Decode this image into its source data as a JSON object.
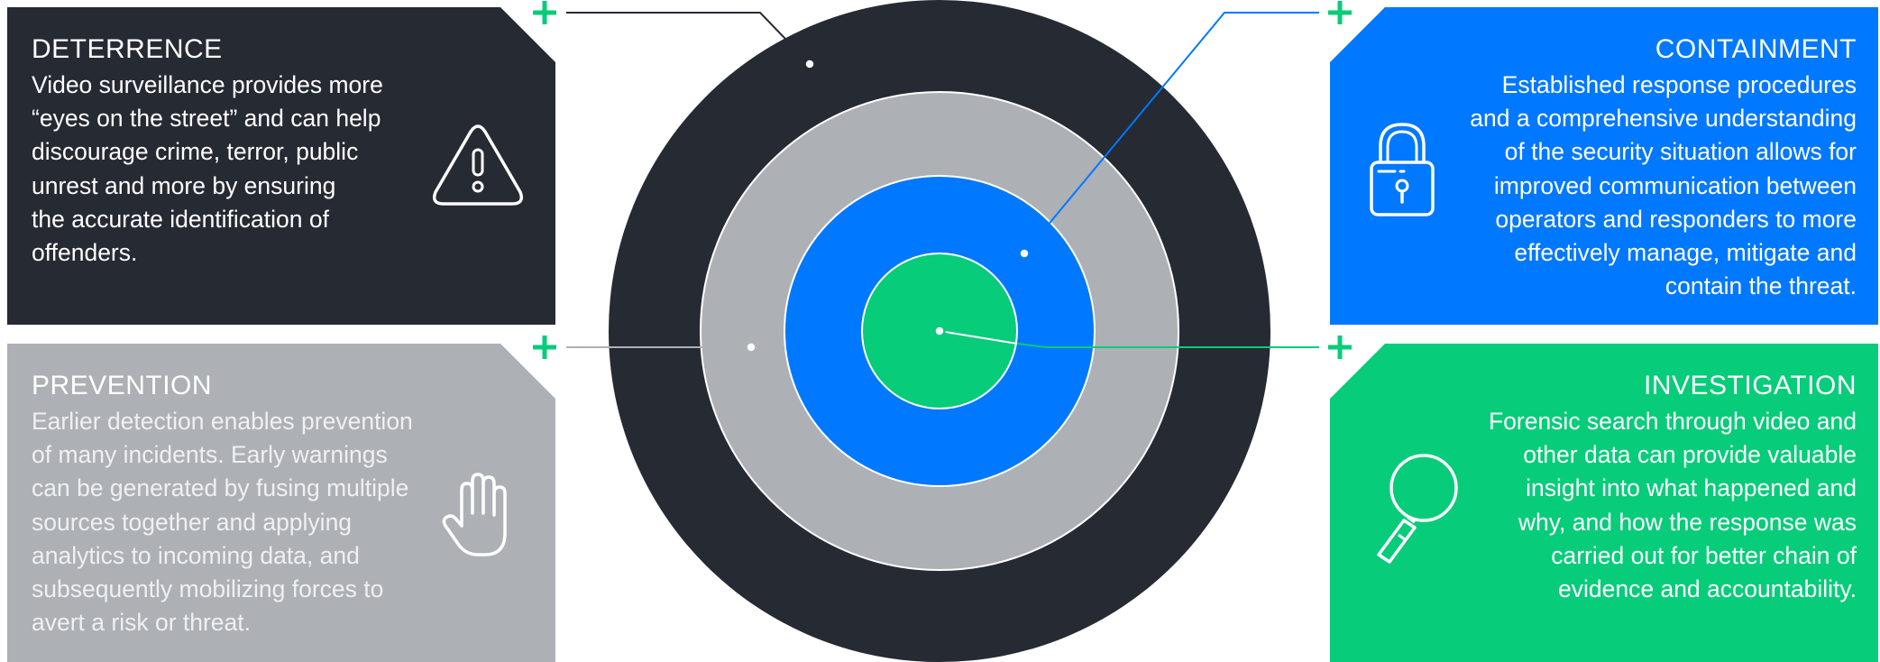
{
  "deterrence": {
    "title": "DETERRENCE",
    "lines": [
      "Video surveillance provides more",
      "“eyes on the street” and can help",
      "discourage crime, terror, public",
      "unrest and more by ensuring",
      "the accurate identification of",
      "offenders."
    ],
    "icon": "warning-icon",
    "color": "#262a33"
  },
  "prevention": {
    "title": "PREVENTION",
    "lines": [
      "Earlier detection enables prevention",
      "of many incidents. Early warnings",
      "can be generated by fusing multiple",
      "sources together and applying",
      "analytics to incoming data, and",
      "subsequently mobilizing forces to",
      "avert a risk or threat."
    ],
    "icon": "hand-icon",
    "color": "#adb1b6"
  },
  "containment": {
    "title": "CONTAINMENT",
    "lines": [
      "Established response procedures",
      "and a comprehensive understanding",
      "of the security situation allows for",
      "improved communication between",
      "operators and responders to more",
      "effectively manage, mitigate and",
      "contain the threat."
    ],
    "icon": "padlock-icon",
    "color": "#0078ff"
  },
  "investigation": {
    "title": "INVESTIGATION",
    "lines": [
      "Forensic search through video and",
      "other data can provide valuable",
      "insight into what happened and",
      "why, and how the response was",
      "carried out for better chain of",
      "evidence and accountability."
    ],
    "icon": "magnifier-icon",
    "color": "#07cc7a"
  },
  "target": {
    "rings": [
      "#262a33",
      "#adb1b6",
      "#0078ff",
      "#07cc7a"
    ],
    "connector_marker": "plus-icon",
    "marker_color": "#07cc7a"
  }
}
